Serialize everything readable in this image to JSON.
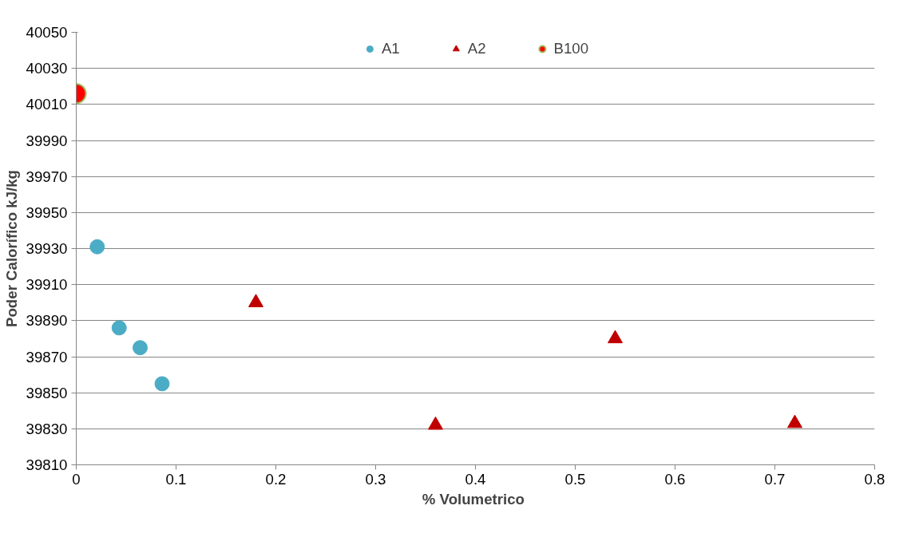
{
  "chart_data": {
    "type": "scatter",
    "xlabel": "%  Volumetrico",
    "ylabel": "Poder Calorífico kJ/kg",
    "xlim": [
      0,
      0.8
    ],
    "xticks": [
      0,
      0.1,
      0.2,
      0.3,
      0.4,
      0.5,
      0.6,
      0.7,
      0.8
    ],
    "ylim": [
      39810,
      40050
    ],
    "yticks": [
      39810,
      39830,
      39850,
      39870,
      39890,
      39910,
      39930,
      39950,
      39970,
      39990,
      40010,
      40030,
      40050
    ],
    "grid": "y",
    "legend": "top",
    "series": [
      {
        "name": "A1",
        "color": "#4bacc6",
        "marker": "circle",
        "x": [
          0.021,
          0.043,
          0.064,
          0.086
        ],
        "values": [
          39931,
          39886,
          39875,
          39855
        ]
      },
      {
        "name": "A2",
        "color": "#c00000",
        "marker": "triangle",
        "x": [
          0.18,
          0.36,
          0.54,
          0.72
        ],
        "values": [
          39900,
          39832,
          39880,
          39833
        ]
      },
      {
        "name": "B100",
        "color": "#ff0000",
        "marker": "circle",
        "x": [
          0
        ],
        "values": [
          40016
        ]
      }
    ]
  }
}
